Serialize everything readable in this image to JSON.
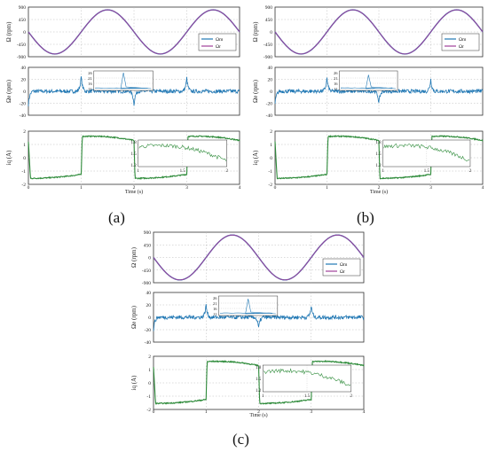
{
  "figure": {
    "panels": [
      {
        "caption": "(a)"
      },
      {
        "caption": "(b)"
      },
      {
        "caption": "(c)"
      }
    ]
  },
  "colors": {
    "measured": "#1f77b4",
    "reference": "#a0409a",
    "current": "#2e8b3a",
    "grid": "#b8b8b8",
    "axis": "#333333"
  },
  "chart_data": [
    {
      "panel": "(a)",
      "type": "line",
      "subplots": [
        {
          "ylabel": "Ω (rpm)",
          "yticks": [
            "900",
            "450",
            "0",
            "-450",
            "-900"
          ],
          "ylim": [
            -900,
            900
          ],
          "legend": [
            "Ωm",
            "Ωr"
          ],
          "legend_position": "right",
          "series": [
            {
              "name": "Ωm",
              "description": "sinusoid amplitude 800 rpm, period 2 s, min at 0.5 s, max at 1.5 s",
              "x": [
                0,
                0.25,
                0.5,
                0.75,
                1.0,
                1.25,
                1.5,
                1.75,
                2.0,
                2.25,
                2.5,
                2.75,
                3.0,
                3.25,
                3.5,
                3.75,
                4.0
              ],
              "y": [
                0,
                -566,
                -800,
                -566,
                0,
                566,
                800,
                566,
                0,
                -566,
                -800,
                -566,
                0,
                566,
                800,
                566,
                0
              ]
            },
            {
              "name": "Ωr",
              "x": [
                0,
                0.25,
                0.5,
                0.75,
                1.0,
                1.25,
                1.5,
                1.75,
                2.0,
                2.25,
                2.5,
                2.75,
                3.0,
                3.25,
                3.5,
                3.75,
                4.0
              ],
              "y": [
                0,
                -566,
                -800,
                -566,
                0,
                566,
                800,
                566,
                0,
                -566,
                -800,
                -566,
                0,
                566,
                800,
                566,
                0
              ]
            }
          ]
        },
        {
          "ylabel": "Ωe (rpm)",
          "yticks": [
            "40",
            "20",
            "0",
            "-20",
            "-40"
          ],
          "ylim": [
            -40,
            40
          ],
          "series": [
            {
              "name": "",
              "noise_band": 4,
              "spikes": [
                {
                  "t": 0.0,
                  "v": -22
                },
                {
                  "t": 1.0,
                  "v": 24
                },
                {
                  "t": 2.0,
                  "v": -22
                },
                {
                  "t": 3.0,
                  "v": 22
                }
              ]
            }
          ],
          "inset": {
            "yticks": [
              "26",
              "21",
              "16",
              "11"
            ],
            "peak": 26
          }
        },
        {
          "ylabel": "iq (A)",
          "yticks": [
            "2",
            "1",
            "0",
            "-1",
            "-2"
          ],
          "ylim": [
            -2,
            2
          ],
          "series": [
            {
              "name": "",
              "x": [
                0,
                0.05,
                0.5,
                0.98,
                1.02,
                1.5,
                1.98,
                2.02,
                2.5,
                2.98,
                3.02,
                3.5,
                4.0
              ],
              "y": [
                1.2,
                -1.6,
                -1.5,
                -1.25,
                1.6,
                1.6,
                1.25,
                -1.6,
                -1.5,
                -1.25,
                1.6,
                1.6,
                1.25
              ]
            }
          ],
          "inset": {
            "yticks": [
              "1.8",
              "1.5",
              "1.2"
            ],
            "xticks": [
              "1",
              "1.5",
              "2"
            ]
          }
        }
      ],
      "xlabel": "Time (s)",
      "xticks": [
        "0",
        "1",
        "2",
        "3",
        "4"
      ],
      "xlim": [
        0,
        4
      ]
    },
    {
      "panel": "(b)",
      "type": "line",
      "subplots": [
        {
          "ylabel": "Ω (rpm)",
          "yticks": [
            "900",
            "450",
            "0",
            "-450",
            "-900"
          ],
          "ylim": [
            -900,
            900
          ],
          "legend": [
            "Ωm",
            "Ωr"
          ],
          "legend_position": "right"
        },
        {
          "ylabel": "Ωe (rpm)",
          "yticks": [
            "40",
            "20",
            "0",
            "-20",
            "-40"
          ],
          "ylim": [
            -40,
            40
          ],
          "series": [
            {
              "name": "",
              "noise_band": 4,
              "spikes": [
                {
                  "t": 0.0,
                  "v": -22
                },
                {
                  "t": 1.0,
                  "v": 22
                },
                {
                  "t": 2.0,
                  "v": -20
                },
                {
                  "t": 3.0,
                  "v": 20
                }
              ]
            }
          ],
          "inset": {
            "yticks": [
              "26",
              "21",
              "16",
              "11"
            ],
            "peak": 24
          }
        },
        {
          "ylabel": "iq (A)",
          "yticks": [
            "2",
            "1",
            "0",
            "-1",
            "-2"
          ],
          "ylim": [
            -2,
            2
          ],
          "inset": {
            "yticks": [
              "1.8",
              "1.5",
              "1.2"
            ],
            "xticks": [
              "1",
              "1.5",
              "2"
            ]
          }
        }
      ],
      "xlabel": "Time (s)",
      "xticks": [
        "0",
        "1",
        "2",
        "3",
        "4"
      ],
      "xlim": [
        0,
        4
      ]
    },
    {
      "panel": "(c)",
      "type": "line",
      "subplots": [
        {
          "ylabel": "Ω (rpm)",
          "yticks": [
            "900",
            "450",
            "0",
            "-450",
            "-900"
          ],
          "ylim": [
            -900,
            900
          ],
          "legend": [
            "Ωm",
            "Ωr"
          ],
          "legend_position": "right"
        },
        {
          "ylabel": "Ωe (rpm)",
          "yticks": [
            "40",
            "20",
            "0",
            "-20",
            "-40"
          ],
          "ylim": [
            -40,
            40
          ],
          "series": [
            {
              "name": "",
              "noise_band": 4,
              "spikes": [
                {
                  "t": 0.0,
                  "v": -20
                },
                {
                  "t": 1.0,
                  "v": 20
                },
                {
                  "t": 2.0,
                  "v": -18
                },
                {
                  "t": 3.0,
                  "v": 18
                }
              ]
            }
          ],
          "inset": {
            "yticks": [
              "26",
              "21",
              "16",
              "11"
            ],
            "peak": 25
          }
        },
        {
          "ylabel": "iq (A)",
          "yticks": [
            "2",
            "1",
            "0",
            "-1",
            "-2"
          ],
          "ylim": [
            -2,
            2
          ],
          "inset": {
            "yticks": [
              "1.8",
              "1.5",
              "1.2"
            ],
            "xticks": [
              "1",
              "1.5",
              "2"
            ]
          }
        }
      ],
      "xlabel": "Time (s)",
      "xticks": [
        "0",
        "1",
        "2",
        "3",
        "4"
      ],
      "xlim": [
        0,
        4
      ]
    }
  ]
}
